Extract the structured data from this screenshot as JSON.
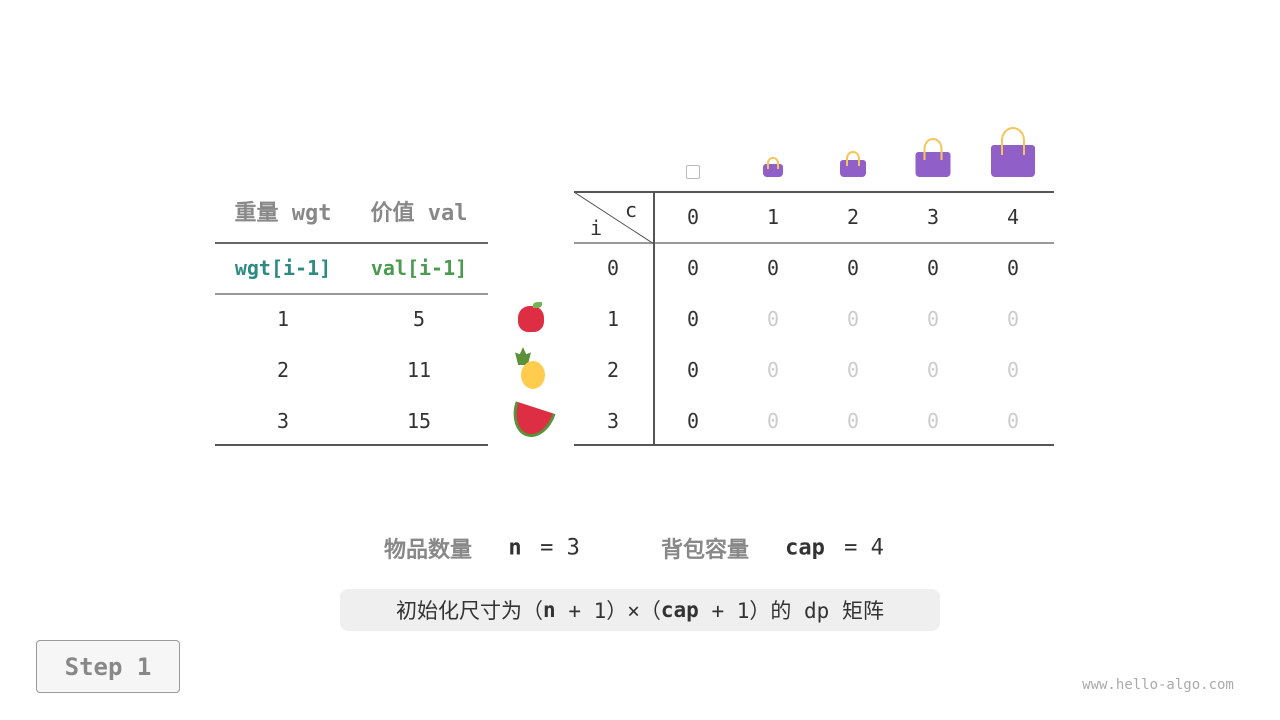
{
  "left_table": {
    "headers": [
      "重量 wgt",
      "价值 val"
    ],
    "subheaders": [
      "wgt[i-1]",
      "val[i-1]"
    ],
    "rows": [
      [
        "1",
        "5"
      ],
      [
        "2",
        "11"
      ],
      [
        "3",
        "15"
      ]
    ],
    "subheader_colors": [
      "#2e8b84",
      "#4a9a50"
    ]
  },
  "items": [
    "apple-icon",
    "pineapple-icon",
    "watermelon-icon"
  ],
  "dp_table": {
    "corner_row": "i",
    "corner_col": "c",
    "col_headers": [
      "0",
      "1",
      "2",
      "3",
      "4"
    ],
    "row_headers": [
      "0",
      "1",
      "2",
      "3"
    ],
    "cells": [
      [
        "0",
        "0",
        "0",
        "0",
        "0"
      ],
      [
        "0",
        "0",
        "0",
        "0",
        "0"
      ],
      [
        "0",
        "0",
        "0",
        "0",
        "0"
      ],
      [
        "0",
        "0",
        "0",
        "0",
        "0"
      ]
    ],
    "filled": [
      [
        true,
        true,
        true,
        true,
        true
      ],
      [
        true,
        false,
        false,
        false,
        false
      ],
      [
        true,
        false,
        false,
        false,
        false
      ],
      [
        true,
        false,
        false,
        false,
        false
      ]
    ]
  },
  "bag_icons": [
    "empty-bag-icon",
    "bag-icon",
    "bag-icon",
    "bag-icon",
    "bag-icon"
  ],
  "summary": {
    "n_label": "物品数量",
    "n_var": "n",
    "n_eq": "= 3",
    "cap_label": "背包容量",
    "cap_var": "cap",
    "cap_eq": "= 4"
  },
  "caption": {
    "pre": "初始化尺寸为（",
    "n": "n",
    "mid1": " + 1）×（",
    "cap": "cap",
    "mid2": " + 1）的 dp 矩阵"
  },
  "step_button": "Step 1",
  "watermark": "www.hello-algo.com"
}
